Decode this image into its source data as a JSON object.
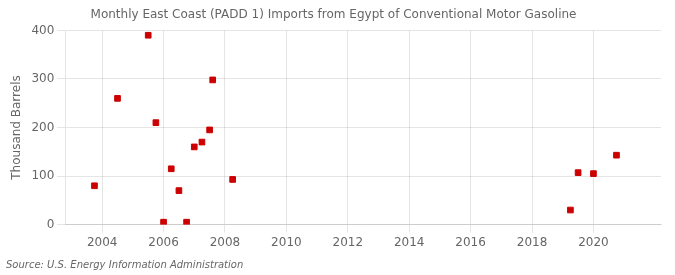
{
  "chart_data": {
    "type": "scatter",
    "title": "Monthly East Coast (PADD 1) Imports from Egypt of Conventional Motor Gasoline",
    "y_label": "Thousand Barrels",
    "annotation": "Source: U.S. Energy Information Administration",
    "x": [
      2003.75,
      2004.5,
      2005.5,
      2005.75,
      2006.0,
      2006.25,
      2006.5,
      2006.75,
      2007.0,
      2007.25,
      2007.5,
      2007.6,
      2008.25,
      2019.25,
      2019.5,
      2020.0,
      2020.75
    ],
    "values": [
      80,
      260,
      390,
      210,
      5,
      115,
      70,
      5,
      160,
      170,
      195,
      298,
      93,
      30,
      107,
      105,
      143
    ],
    "color": "#cc0000",
    "marker": "square",
    "xlim": [
      2002.8,
      2022.2
    ],
    "ylim": [
      0,
      400
    ],
    "xticks": [
      2004,
      2006,
      2008,
      2010,
      2012,
      2014,
      2016,
      2018,
      2020
    ],
    "yticks": [
      0,
      100,
      200,
      300,
      400
    ],
    "grid": true
  }
}
